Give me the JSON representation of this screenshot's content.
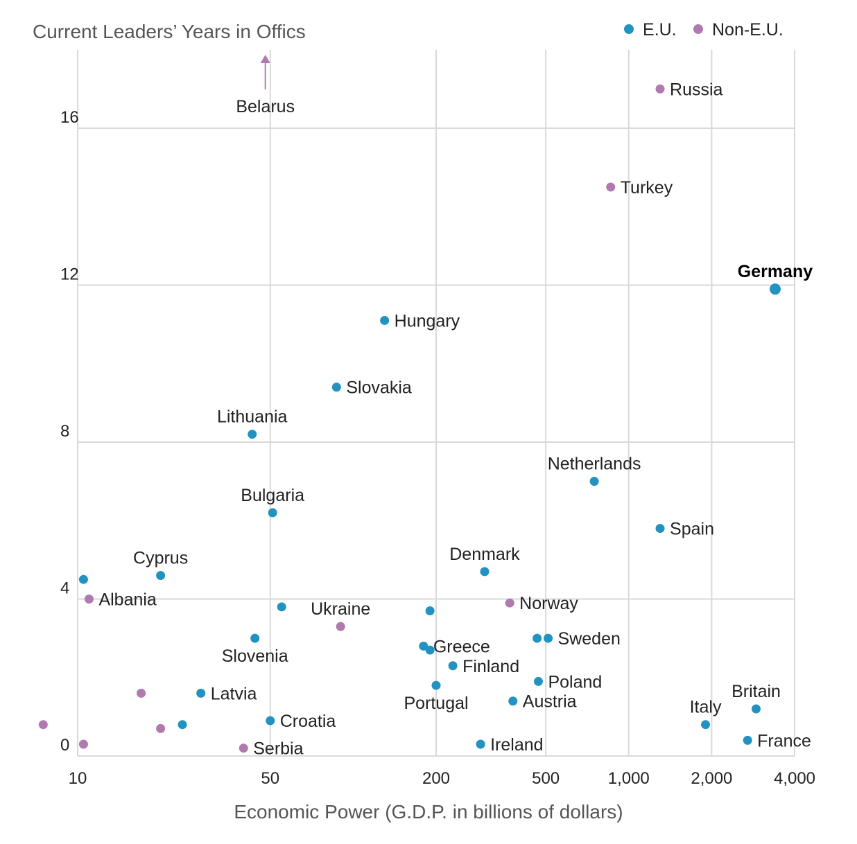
{
  "chart_data": {
    "type": "scatter",
    "title": "",
    "ylabel": "Current Leaders’ Years in Offics",
    "xlabel": "Economic Power (G.D.P. in billions of dollars)",
    "x_scale": "log",
    "xlim": [
      10,
      4000
    ],
    "ylim": [
      0,
      18
    ],
    "x_ticks": [
      10,
      50,
      200,
      500,
      1000,
      2000,
      4000
    ],
    "x_tick_labels": [
      "10",
      "50",
      "200",
      "500",
      "1,000",
      "2,000",
      "4,000"
    ],
    "y_ticks": [
      0,
      4,
      8,
      12,
      16
    ],
    "y_tick_labels": [
      "0",
      "4",
      "8",
      "12",
      "16"
    ],
    "grid": true,
    "legend_position": "top-right",
    "colors": {
      "eu": "#2293c0",
      "non_eu": "#b07aaf"
    },
    "series": [
      {
        "name": "E.U.",
        "key": "eu"
      },
      {
        "name": "Non-E.U.",
        "key": "non_eu"
      }
    ],
    "points": [
      {
        "label": "Germany",
        "x": 3400,
        "y": 11.9,
        "group": "eu",
        "bold": true,
        "label_pos": "above"
      },
      {
        "label": "Hungary",
        "x": 130,
        "y": 11.1,
        "group": "eu",
        "label_pos": "right"
      },
      {
        "label": "Slovakia",
        "x": 87,
        "y": 9.4,
        "group": "eu",
        "label_pos": "right"
      },
      {
        "label": "Lithuania",
        "x": 43,
        "y": 8.2,
        "group": "eu",
        "label_pos": "above"
      },
      {
        "label": "Netherlands",
        "x": 750,
        "y": 7.0,
        "group": "eu",
        "label_pos": "above"
      },
      {
        "label": "Bulgaria",
        "x": 51,
        "y": 6.2,
        "group": "eu",
        "label_pos": "above"
      },
      {
        "label": "Spain",
        "x": 1300,
        "y": 5.8,
        "group": "eu",
        "label_pos": "right"
      },
      {
        "label": "Denmark",
        "x": 300,
        "y": 4.7,
        "group": "eu",
        "label_pos": "above"
      },
      {
        "label": "Cyprus",
        "x": 20,
        "y": 4.6,
        "group": "eu",
        "label_pos": "above"
      },
      {
        "label": "",
        "x": 10.5,
        "y": 4.5,
        "group": "eu"
      },
      {
        "label": "",
        "x": 55,
        "y": 3.8,
        "group": "eu"
      },
      {
        "label": "",
        "x": 190,
        "y": 3.7,
        "group": "eu"
      },
      {
        "label": "Slovenia",
        "x": 44,
        "y": 3.0,
        "group": "eu",
        "label_pos": "below"
      },
      {
        "label": "Sweden",
        "x": 510,
        "y": 3.0,
        "group": "eu",
        "label_pos": "right"
      },
      {
        "label": "",
        "x": 465,
        "y": 3.0,
        "group": "eu"
      },
      {
        "label": "Greece",
        "x": 180,
        "y": 2.8,
        "group": "eu",
        "label_pos": "right"
      },
      {
        "label": "",
        "x": 190,
        "y": 2.7,
        "group": "eu"
      },
      {
        "label": "Finland",
        "x": 230,
        "y": 2.3,
        "group": "eu",
        "label_pos": "right"
      },
      {
        "label": "Poland",
        "x": 470,
        "y": 1.9,
        "group": "eu",
        "label_pos": "right"
      },
      {
        "label": "Portugal",
        "x": 200,
        "y": 1.8,
        "group": "eu",
        "label_pos": "below"
      },
      {
        "label": "Latvia",
        "x": 28,
        "y": 1.6,
        "group": "eu",
        "label_pos": "right"
      },
      {
        "label": "Austria",
        "x": 380,
        "y": 1.4,
        "group": "eu",
        "label_pos": "right"
      },
      {
        "label": "Britain",
        "x": 2900,
        "y": 1.2,
        "group": "eu",
        "label_pos": "above"
      },
      {
        "label": "Croatia",
        "x": 50,
        "y": 0.9,
        "group": "eu",
        "label_pos": "right"
      },
      {
        "label": "",
        "x": 24,
        "y": 0.8,
        "group": "eu"
      },
      {
        "label": "Italy",
        "x": 1900,
        "y": 0.8,
        "group": "eu",
        "label_pos": "above"
      },
      {
        "label": "France",
        "x": 2700,
        "y": 0.4,
        "group": "eu",
        "label_pos": "right"
      },
      {
        "label": "Ireland",
        "x": 290,
        "y": 0.3,
        "group": "eu",
        "label_pos": "right"
      },
      {
        "label": "Russia",
        "x": 1300,
        "y": 17.0,
        "group": "non_eu",
        "label_pos": "right"
      },
      {
        "label": "Turkey",
        "x": 860,
        "y": 14.5,
        "group": "non_eu",
        "label_pos": "right"
      },
      {
        "label": "Albania",
        "x": 11,
        "y": 4.0,
        "group": "non_eu",
        "label_pos": "right"
      },
      {
        "label": "Norway",
        "x": 370,
        "y": 3.9,
        "group": "non_eu",
        "label_pos": "right"
      },
      {
        "label": "Ukraine",
        "x": 90,
        "y": 3.3,
        "group": "non_eu",
        "label_pos": "above"
      },
      {
        "label": "",
        "x": 17,
        "y": 1.6,
        "group": "non_eu"
      },
      {
        "label": "",
        "x": 7.5,
        "y": 0.8,
        "group": "non_eu"
      },
      {
        "label": "",
        "x": 20,
        "y": 0.7,
        "group": "non_eu"
      },
      {
        "label": "",
        "x": 10.5,
        "y": 0.3,
        "group": "non_eu"
      },
      {
        "label": "Serbia",
        "x": 40,
        "y": 0.2,
        "group": "non_eu",
        "label_pos": "right"
      }
    ],
    "annotations": [
      {
        "label": "Belarus",
        "x": 48,
        "direction": "up",
        "group": "non_eu"
      }
    ]
  }
}
